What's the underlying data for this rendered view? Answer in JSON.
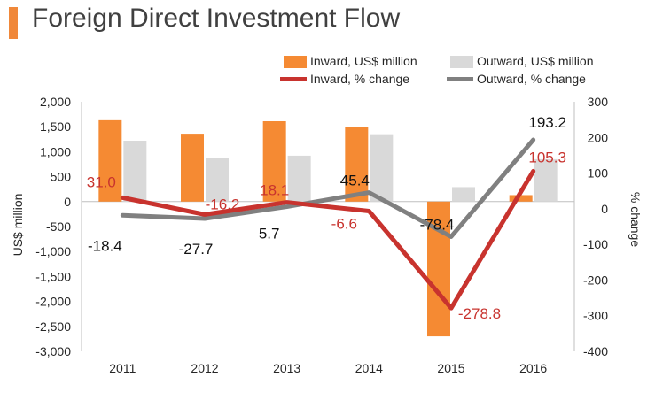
{
  "header": {
    "title": "Foreign Direct Investment Flow"
  },
  "colors": {
    "accent": "#f0883a",
    "inward_bar": "#f58a33",
    "outward_bar": "#d9d9d9",
    "inward_line": "#c8332e",
    "outward_line": "#808080"
  },
  "legend": [
    {
      "label": "Inward, US$ million",
      "kind": "bar-inward"
    },
    {
      "label": "Outward, US$ million",
      "kind": "bar-outward"
    },
    {
      "label": "Inward, % change",
      "kind": "line-inward"
    },
    {
      "label": "Outward, % change",
      "kind": "line-outward"
    }
  ],
  "chart_data": {
    "type": "bar+line",
    "title": "Foreign Direct Investment Flow",
    "categories": [
      "2011",
      "2012",
      "2013",
      "2014",
      "2015",
      "2016"
    ],
    "series": [
      {
        "name": "Inward, US$ million",
        "type": "bar",
        "axis": "left",
        "values": [
          1630,
          1360,
          1610,
          1500,
          -2700,
          130
        ]
      },
      {
        "name": "Outward, US$ million",
        "type": "bar",
        "axis": "left",
        "values": [
          1220,
          880,
          920,
          1350,
          290,
          850
        ]
      },
      {
        "name": "Inward, % change",
        "type": "line",
        "axis": "right",
        "values": [
          31.0,
          -16.2,
          18.1,
          -6.6,
          -278.8,
          105.3
        ],
        "labels": [
          "31.0",
          "-16.2",
          "18.1",
          "-6.6",
          "-278.8",
          "105.3"
        ]
      },
      {
        "name": "Outward, % change",
        "type": "line",
        "axis": "right",
        "values": [
          -18.4,
          -27.7,
          5.7,
          45.4,
          -78.4,
          193.2
        ],
        "labels": [
          "-18.4",
          "-27.7",
          "5.7",
          "45.4",
          "-78.4",
          "193.2"
        ]
      }
    ],
    "ylabel_left": "US$ million",
    "ylabel_right": "% change",
    "ylim_left": [
      -3000,
      2000
    ],
    "ylim_right": [
      -400,
      300
    ],
    "yticks_left": [
      "2,000",
      "1,500",
      "1,000",
      "500",
      "0",
      "-500",
      "-1,000",
      "-1,500",
      "-2,000",
      "-2,500",
      "-3,000"
    ],
    "yticks_left_values": [
      2000,
      1500,
      1000,
      500,
      0,
      -500,
      -1000,
      -1500,
      -2000,
      -2500,
      -3000
    ],
    "yticks_right": [
      "300",
      "200",
      "100",
      "0",
      "-100",
      "-200",
      "-300",
      "-400"
    ],
    "yticks_right_values": [
      300,
      200,
      100,
      0,
      -100,
      -200,
      -300,
      -400
    ],
    "legend_position": "top-right",
    "grid": false
  }
}
